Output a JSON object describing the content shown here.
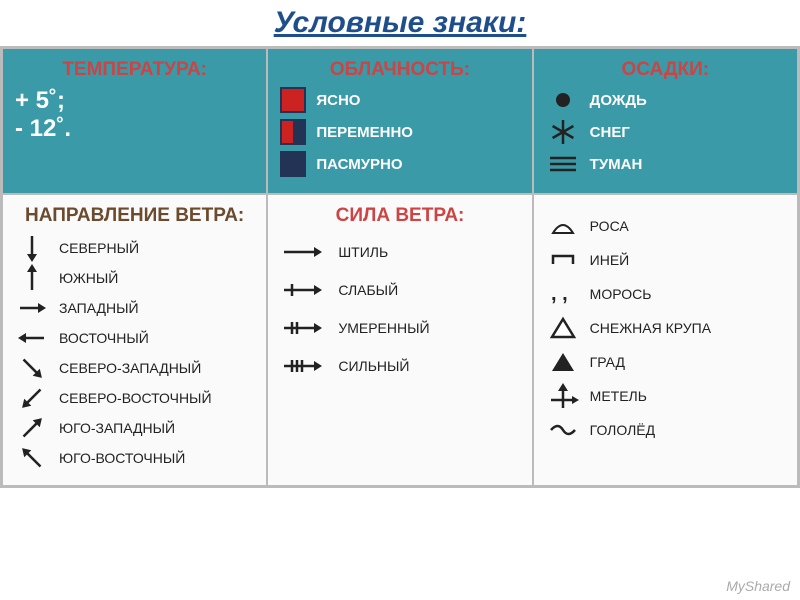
{
  "title": "Условные знаки:",
  "top": {
    "temp": {
      "header": "ТЕМПЕРАТУРА:",
      "value1": "+ 5˚;",
      "value2": "- 12˚."
    },
    "cloud": {
      "header": "ОБЛАЧНОСТЬ:",
      "items": [
        {
          "label": "ЯСНО",
          "fill": "#c22",
          "border": "#223355"
        },
        {
          "label": "ПЕРЕМЕННО",
          "fill": "half",
          "c1": "#c22",
          "c2": "#223355",
          "border": "#223355"
        },
        {
          "label": "ПАСМУРНО",
          "fill": "#223355",
          "border": "#223355"
        }
      ]
    },
    "precip": {
      "header": "ОСАДКИ:",
      "items": [
        {
          "label": "ДОЖДЬ",
          "icon": "dot"
        },
        {
          "label": "СНЕГ",
          "icon": "snowflake"
        },
        {
          "label": "ТУМАН",
          "icon": "fog"
        }
      ]
    }
  },
  "bottom": {
    "direction": {
      "header": "НАПРАВЛЕНИЕ ВЕТРА:",
      "items": [
        {
          "label": "СЕВЕРНЫЙ",
          "angle": 180
        },
        {
          "label": "ЮЖНЫЙ",
          "angle": 0
        },
        {
          "label": "ЗАПАДНЫЙ",
          "angle": 90
        },
        {
          "label": "ВОСТОЧНЫЙ",
          "angle": 270
        },
        {
          "label": "СЕВЕРО-ЗАПАДНЫЙ",
          "angle": 135
        },
        {
          "label": "СЕВЕРО-ВОСТОЧНЫЙ",
          "angle": 225
        },
        {
          "label": "ЮГО-ЗАПАДНЫЙ",
          "angle": 45
        },
        {
          "label": "ЮГО-ВОСТОЧНЫЙ",
          "angle": 315
        }
      ]
    },
    "force": {
      "header": "СИЛА ВЕТРА:",
      "items": [
        {
          "label": "ШТИЛЬ",
          "ticks": 0
        },
        {
          "label": "СЛАБЫЙ",
          "ticks": 1
        },
        {
          "label": "УМЕРЕННЫЙ",
          "ticks": 2
        },
        {
          "label": "СИЛЬНЫЙ",
          "ticks": 3
        }
      ]
    },
    "precip2": {
      "items": [
        {
          "label": "РОСА",
          "icon": "rosa"
        },
        {
          "label": "ИНЕЙ",
          "icon": "iney"
        },
        {
          "label": "МОРОСЬ",
          "icon": "moros"
        },
        {
          "label": "СНЕЖНАЯ КРУПА",
          "icon": "krupa"
        },
        {
          "label": "ГРАД",
          "icon": "grad"
        },
        {
          "label": "МЕТЕЛЬ",
          "icon": "metel"
        },
        {
          "label": "ГОЛОЛЁД",
          "icon": "gololed"
        }
      ]
    }
  },
  "credit": "MyShared",
  "colors": {
    "stroke": "#222",
    "red": "#c44",
    "teal": "#3a9aa8"
  }
}
